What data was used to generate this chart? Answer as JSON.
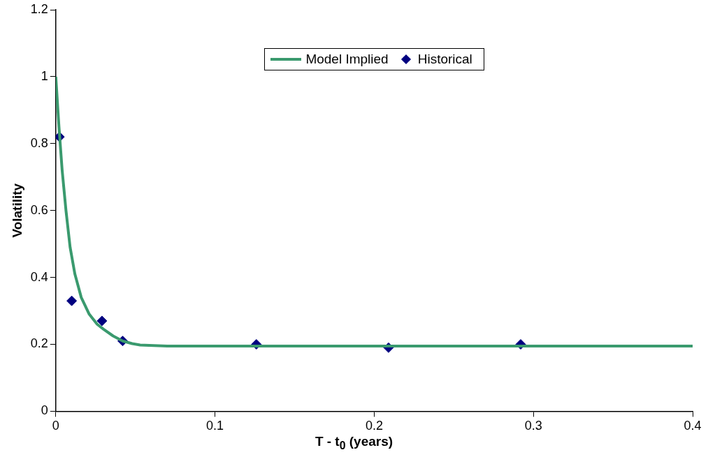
{
  "chart_data": {
    "type": "line",
    "xlabel": "T - t$_{0}$ (years)",
    "ylabel": "Volatility",
    "xlim": [
      0,
      0.4
    ],
    "xticks": [
      0,
      0.1,
      0.2,
      0.3,
      0.4
    ],
    "ylim": [
      0,
      1.2
    ],
    "yticks": [
      0,
      0.2,
      0.4,
      0.6,
      0.8,
      1,
      1.2
    ],
    "grid": false,
    "legend": "top",
    "series": [
      {
        "name": "Model Implied",
        "type": "line",
        "marker": "none",
        "color": "#3a9a6e",
        "x": [
          0,
          0.002,
          0.004,
          0.0064,
          0.009,
          0.012,
          0.016,
          0.021,
          0.026,
          0.03,
          0.036,
          0.042,
          0.048,
          0.053,
          0.07,
          0.1,
          0.2,
          0.3,
          0.4
        ],
        "values": [
          1.0,
          0.85,
          0.72,
          0.6,
          0.49,
          0.41,
          0.34,
          0.29,
          0.26,
          0.245,
          0.225,
          0.21,
          0.202,
          0.198,
          0.195,
          0.195,
          0.195,
          0.195,
          0.195
        ]
      },
      {
        "name": "Historical",
        "type": "scatter",
        "marker": "diamond",
        "color": "#000080",
        "x": [
          0.0023,
          0.01,
          0.029,
          0.042,
          0.126,
          0.209,
          0.292
        ],
        "values": [
          0.82,
          0.33,
          0.27,
          0.21,
          0.2,
          0.19,
          0.2
        ]
      }
    ]
  }
}
